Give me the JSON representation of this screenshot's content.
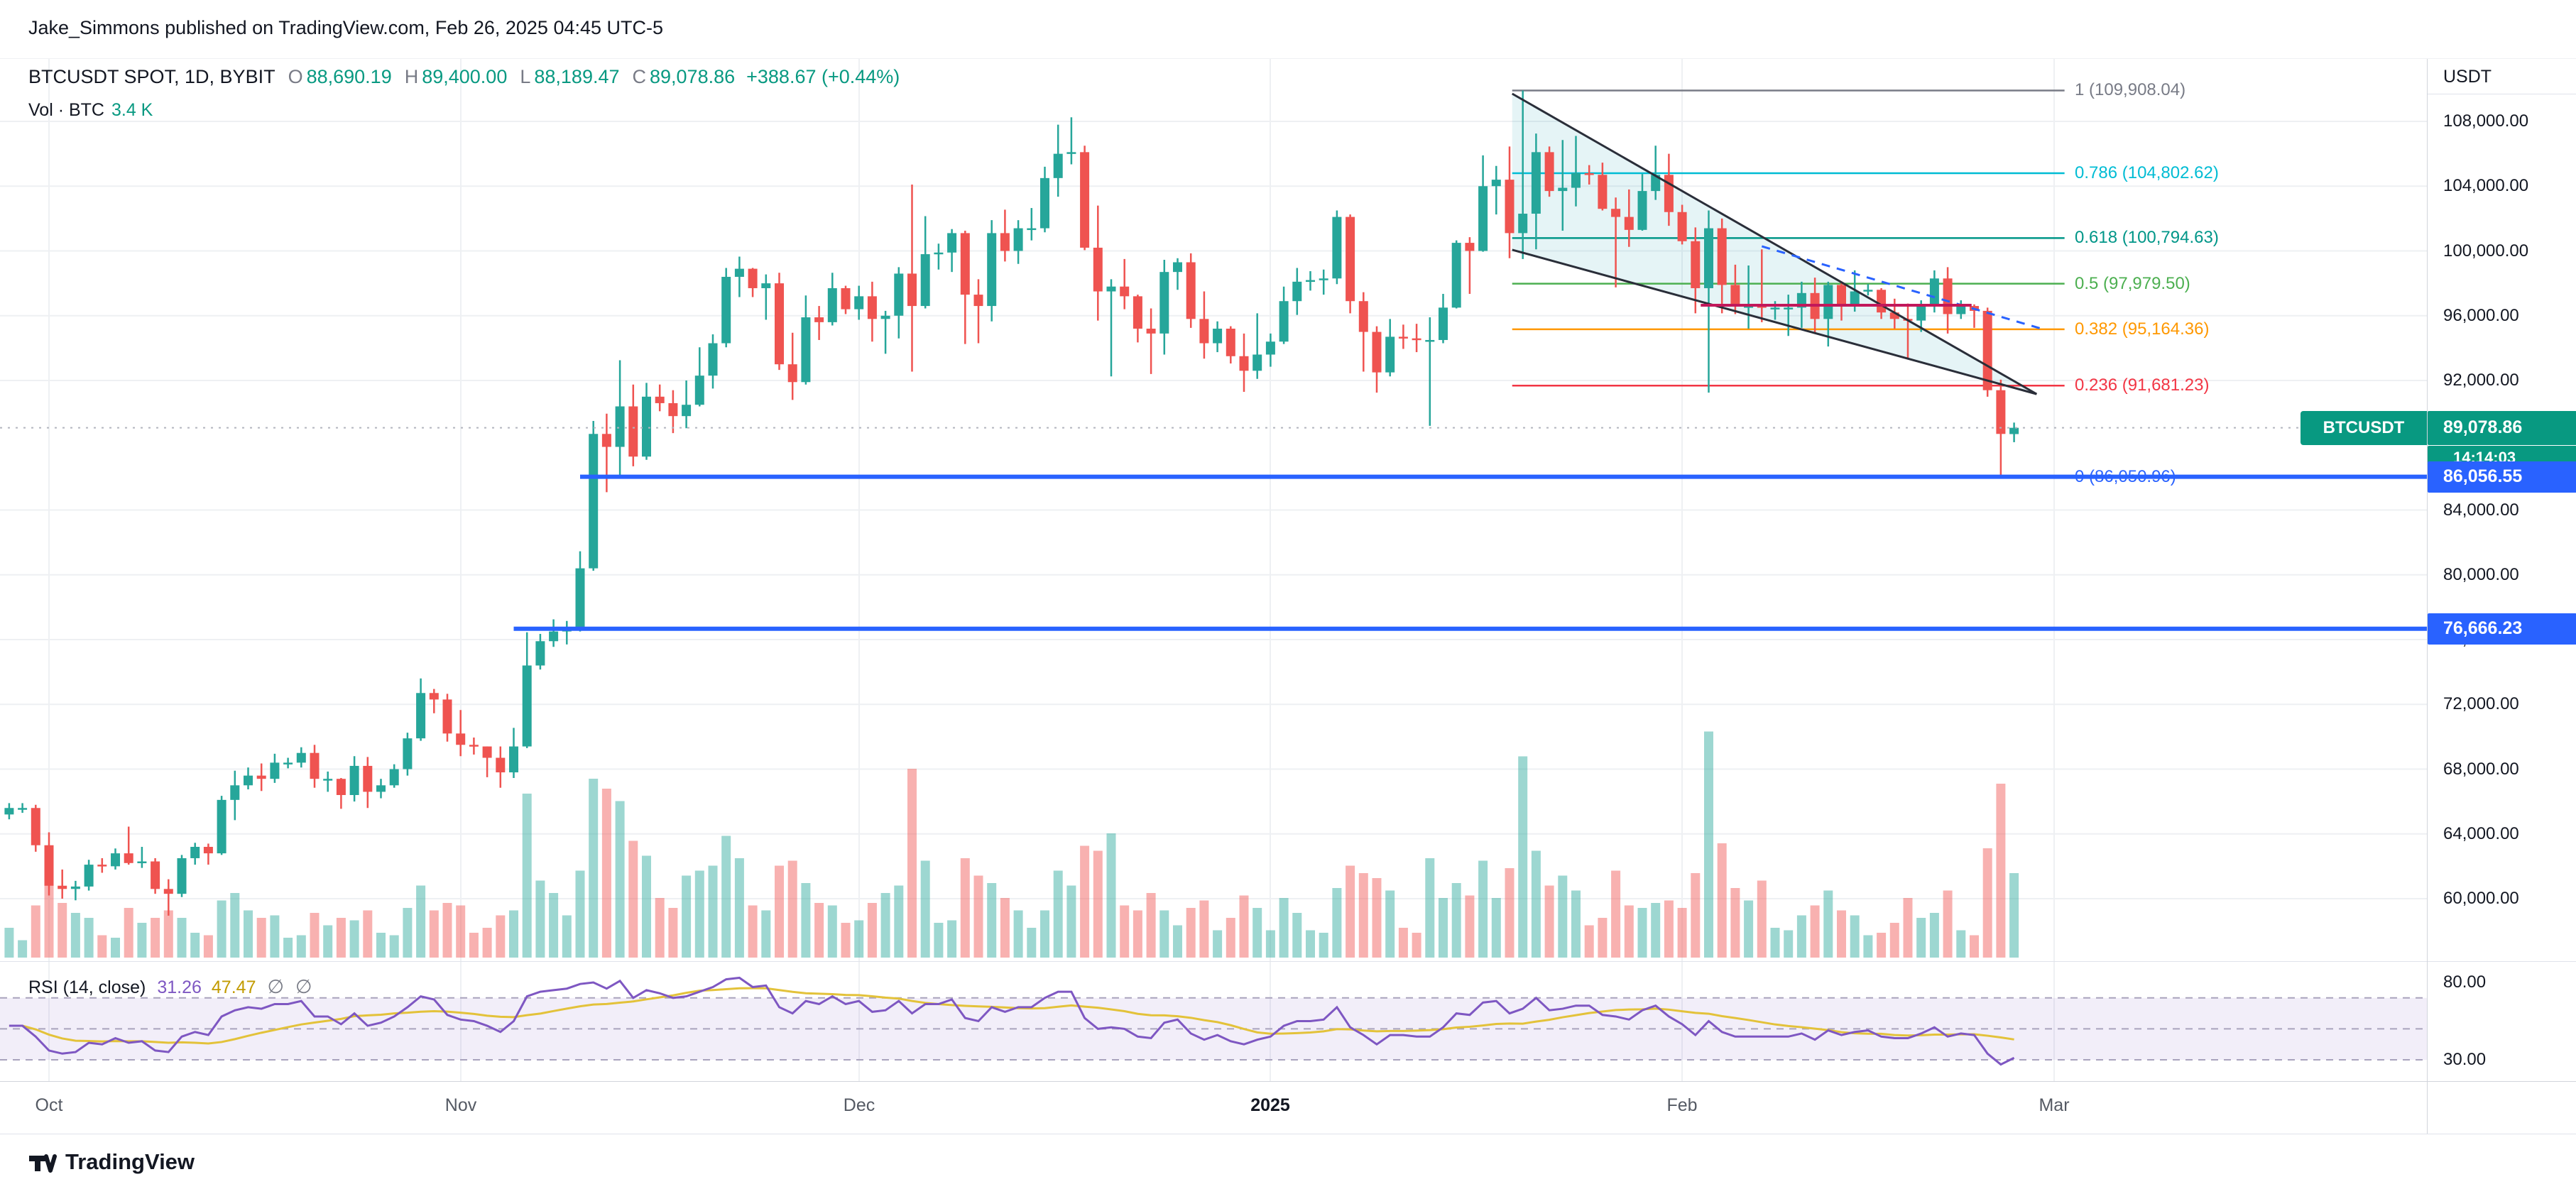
{
  "attribution": {
    "text": "Jake_Simmons published on TradingView.com, Feb 26, 2025 04:45 UTC-5"
  },
  "symbol_header": {
    "title": "BTCUSDT SPOT, 1D, BYBIT",
    "o_label": "O",
    "o": "88,690.19",
    "h_label": "H",
    "h": "89,400.00",
    "l_label": "L",
    "l": "88,189.47",
    "c_label": "C",
    "c": "89,078.86",
    "change": "+388.67 (+0.44%)",
    "volume_label": "Vol · BTC",
    "volume_value": "3.4 K"
  },
  "rsi_header": {
    "title": "RSI (14, close)",
    "value": "31.26",
    "ma_value": "47.47",
    "empty1": "∅",
    "empty2": "∅"
  },
  "price_axis": {
    "currency": "USDT",
    "ticks": [
      {
        "label": "108,000.00",
        "price": 108000
      },
      {
        "label": "104,000.00",
        "price": 104000
      },
      {
        "label": "100,000.00",
        "price": 100000
      },
      {
        "label": "96,000.00",
        "price": 96000
      },
      {
        "label": "92,000.00",
        "price": 92000
      },
      {
        "label": "84,000.00",
        "price": 84000
      },
      {
        "label": "80,000.00",
        "price": 80000
      },
      {
        "label": "76,000.00",
        "price": 76000
      },
      {
        "label": "72,000.00",
        "price": 72000
      },
      {
        "label": "68,000.00",
        "price": 68000
      },
      {
        "label": "64,000.00",
        "price": 64000
      },
      {
        "label": "60,000.00",
        "price": 60000
      }
    ],
    "rsi_ticks": [
      {
        "label": "80.00",
        "value": 80
      },
      {
        "label": "30.00",
        "value": 30
      }
    ]
  },
  "badges": {
    "current": {
      "symbol": "BTCUSDT",
      "price": "89,078.86",
      "countdown": "14:14:03",
      "color": "#089981",
      "value": 89078.86
    },
    "level1": {
      "label": "86,056.55",
      "value": 86056.55,
      "color": "#2962ff"
    },
    "level2": {
      "label": "76,666.23",
      "value": 76666.23,
      "color": "#2962ff"
    }
  },
  "time_axis": {
    "labels": [
      {
        "text": "Oct",
        "x": 69
      },
      {
        "text": "Nov",
        "x": 649
      },
      {
        "text": "Dec",
        "x": 1210
      },
      {
        "text": "2025",
        "x": 1789,
        "major": true
      },
      {
        "text": "Feb",
        "x": 2369
      },
      {
        "text": "Mar",
        "x": 2893
      }
    ]
  },
  "footer": {
    "brand": "TradingView"
  },
  "colors": {
    "up": "#26a69a",
    "down": "#ef5350",
    "vol_up": "rgba(38,166,154,0.45)",
    "vol_down": "rgba(239,83,80,0.45)",
    "rsi": "#7e57c2",
    "rsi_ma": "#e3c23a",
    "rsi_band_fill": "rgba(126,87,194,0.10)",
    "ray": "#2962ff",
    "grid": "#eef0f3",
    "channel": "#2a2e39",
    "channel_fill": "rgba(0,150,170,0.10)",
    "pink": "#c2185b",
    "price_dotted": "#b2b5be"
  },
  "chart_data": {
    "type": "candlestick",
    "interval": "1D",
    "ylim": [
      57500,
      111500
    ],
    "candles": [
      [
        65200,
        65900,
        64900,
        65600,
        1.2
      ],
      [
        65600,
        65900,
        65300,
        65600,
        0.7
      ],
      [
        65600,
        65800,
        62900,
        63300,
        2.1
      ],
      [
        63300,
        64100,
        60200,
        60800,
        3.2
      ],
      [
        60800,
        61800,
        60000,
        60600,
        2.2
      ],
      [
        60600,
        61100,
        59900,
        60750,
        1.8
      ],
      [
        60750,
        62400,
        60500,
        62100,
        1.6
      ],
      [
        62100,
        62500,
        61600,
        62000,
        0.9
      ],
      [
        62000,
        63100,
        61800,
        62800,
        0.8
      ],
      [
        62800,
        64450,
        62100,
        62200,
        2.0
      ],
      [
        62200,
        63200,
        61900,
        62300,
        1.4
      ],
      [
        62300,
        62500,
        60300,
        60600,
        1.6
      ],
      [
        60600,
        61200,
        58950,
        60300,
        1.9
      ],
      [
        60300,
        62700,
        60100,
        62500,
        1.6
      ],
      [
        62500,
        63450,
        62100,
        63200,
        1.0
      ],
      [
        63200,
        63400,
        62100,
        62800,
        0.9
      ],
      [
        62800,
        66350,
        62700,
        66100,
        2.3
      ],
      [
        66100,
        67900,
        64850,
        67000,
        2.6
      ],
      [
        67000,
        68100,
        66750,
        67600,
        1.9
      ],
      [
        67600,
        68350,
        66650,
        67400,
        1.6
      ],
      [
        67400,
        68950,
        67150,
        68400,
        1.7
      ],
      [
        68400,
        68700,
        68050,
        68400,
        0.8
      ],
      [
        68400,
        69350,
        68100,
        69000,
        0.9
      ],
      [
        69000,
        69500,
        66850,
        67400,
        1.8
      ],
      [
        67400,
        67850,
        66600,
        67400,
        1.3
      ],
      [
        67400,
        67450,
        65550,
        66400,
        1.6
      ],
      [
        66400,
        68800,
        66000,
        68200,
        1.5
      ],
      [
        68200,
        68750,
        65600,
        66600,
        1.9
      ],
      [
        66600,
        67400,
        66200,
        67000,
        1.0
      ],
      [
        67000,
        68300,
        66850,
        68000,
        0.9
      ],
      [
        68000,
        70250,
        67600,
        69900,
        2.0
      ],
      [
        69900,
        73600,
        69750,
        72700,
        2.9
      ],
      [
        72700,
        72950,
        71450,
        72300,
        1.9
      ],
      [
        72300,
        72650,
        69700,
        70200,
        2.2
      ],
      [
        70200,
        71650,
        68800,
        69500,
        2.1
      ],
      [
        69500,
        69950,
        68900,
        69400,
        1.0
      ],
      [
        69400,
        69400,
        67500,
        68700,
        1.2
      ],
      [
        68700,
        69400,
        66850,
        67800,
        1.7
      ],
      [
        67800,
        70550,
        67450,
        69400,
        1.9
      ],
      [
        69400,
        76450,
        69300,
        74400,
        6.6
      ],
      [
        74400,
        76350,
        74150,
        75900,
        3.1
      ],
      [
        75900,
        77250,
        75550,
        76500,
        2.6
      ],
      [
        76500,
        77150,
        75700,
        76700,
        1.7
      ],
      [
        76700,
        81450,
        76500,
        80400,
        3.5
      ],
      [
        80400,
        89500,
        80250,
        88700,
        7.2
      ],
      [
        88700,
        89950,
        85100,
        87900,
        6.8
      ],
      [
        87900,
        93250,
        86150,
        90400,
        6.3
      ],
      [
        90400,
        91750,
        86700,
        87300,
        4.7
      ],
      [
        87300,
        91850,
        87100,
        91000,
        4.1
      ],
      [
        91000,
        91750,
        90100,
        90600,
        2.4
      ],
      [
        90600,
        91400,
        88750,
        89800,
        2.0
      ],
      [
        89800,
        92000,
        89050,
        90500,
        3.3
      ],
      [
        90500,
        94050,
        90400,
        92300,
        3.5
      ],
      [
        92300,
        94850,
        91500,
        94300,
        3.7
      ],
      [
        94300,
        98950,
        94050,
        98400,
        4.9
      ],
      [
        98400,
        99650,
        97150,
        98900,
        4.0
      ],
      [
        98900,
        98950,
        97150,
        97700,
        2.1
      ],
      [
        97700,
        98550,
        95750,
        98000,
        1.9
      ],
      [
        98000,
        98650,
        92650,
        93000,
        3.7
      ],
      [
        93000,
        94950,
        90800,
        91900,
        3.9
      ],
      [
        91900,
        97250,
        91750,
        95900,
        3.0
      ],
      [
        95900,
        96600,
        94500,
        95600,
        2.2
      ],
      [
        95600,
        98650,
        95400,
        97700,
        2.1
      ],
      [
        97700,
        97850,
        96100,
        96400,
        1.4
      ],
      [
        96400,
        97850,
        95750,
        97200,
        1.5
      ],
      [
        97200,
        98100,
        94400,
        95800,
        2.2
      ],
      [
        95800,
        96300,
        93650,
        96000,
        2.6
      ],
      [
        96000,
        99000,
        94600,
        98600,
        2.9
      ],
      [
        98600,
        104100,
        92550,
        96600,
        7.6
      ],
      [
        96600,
        102150,
        96450,
        99800,
        3.9
      ],
      [
        99800,
        100450,
        98850,
        99900,
        1.4
      ],
      [
        99900,
        101350,
        98700,
        101100,
        1.5
      ],
      [
        101100,
        101250,
        94250,
        97300,
        4.0
      ],
      [
        97300,
        98250,
        94300,
        96600,
        3.3
      ],
      [
        96600,
        101900,
        95650,
        101100,
        3.0
      ],
      [
        101100,
        102550,
        99350,
        100000,
        2.4
      ],
      [
        100000,
        101900,
        99200,
        101400,
        1.9
      ],
      [
        101400,
        102650,
        100650,
        101400,
        1.2
      ],
      [
        101400,
        105200,
        101150,
        104500,
        1.9
      ],
      [
        104500,
        107800,
        103350,
        106000,
        3.5
      ],
      [
        106000,
        108250,
        105350,
        106100,
        2.9
      ],
      [
        106100,
        106500,
        100050,
        100200,
        4.5
      ],
      [
        100200,
        102800,
        95700,
        97500,
        4.3
      ],
      [
        97500,
        98250,
        92250,
        97800,
        5.0
      ],
      [
        97800,
        99500,
        96400,
        97200,
        2.1
      ],
      [
        97200,
        97300,
        94350,
        95200,
        1.9
      ],
      [
        95200,
        96450,
        92400,
        94900,
        2.6
      ],
      [
        94900,
        99450,
        93600,
        98700,
        1.9
      ],
      [
        98700,
        99550,
        97600,
        99300,
        1.3
      ],
      [
        99300,
        99850,
        95250,
        95800,
        2.0
      ],
      [
        95800,
        97500,
        93350,
        94300,
        2.3
      ],
      [
        94300,
        95650,
        93750,
        95200,
        1.1
      ],
      [
        95200,
        95350,
        93050,
        93500,
        1.6
      ],
      [
        93500,
        94900,
        91300,
        92600,
        2.5
      ],
      [
        92600,
        96150,
        92100,
        93600,
        2.0
      ],
      [
        93600,
        94900,
        92850,
        94400,
        1.1
      ],
      [
        94400,
        97800,
        94250,
        96900,
        2.4
      ],
      [
        96900,
        98950,
        96050,
        98100,
        1.8
      ],
      [
        98100,
        98750,
        97550,
        98200,
        1.1
      ],
      [
        98200,
        98850,
        97300,
        98300,
        1.0
      ],
      [
        98300,
        102500,
        97950,
        102100,
        2.8
      ],
      [
        102100,
        102250,
        96150,
        96900,
        3.7
      ],
      [
        96900,
        97450,
        92550,
        95000,
        3.4
      ],
      [
        95000,
        95350,
        91250,
        92500,
        3.2
      ],
      [
        92500,
        95800,
        92250,
        94700,
        2.7
      ],
      [
        94700,
        95450,
        93950,
        94600,
        1.2
      ],
      [
        94600,
        95500,
        93750,
        94500,
        1.0
      ],
      [
        94500,
        95900,
        89200,
        94500,
        4.0
      ],
      [
        94500,
        97350,
        94300,
        96500,
        2.4
      ],
      [
        96500,
        100650,
        96450,
        100500,
        3.0
      ],
      [
        100500,
        100850,
        97350,
        100000,
        2.5
      ],
      [
        100000,
        105900,
        99950,
        104000,
        3.9
      ],
      [
        104000,
        105250,
        102250,
        104400,
        2.4
      ],
      [
        104400,
        106450,
        99550,
        101100,
        3.6
      ],
      [
        101100,
        109908,
        99500,
        102300,
        8.1
      ],
      [
        102300,
        107250,
        100100,
        106100,
        4.3
      ],
      [
        106100,
        106450,
        103350,
        103700,
        2.9
      ],
      [
        103700,
        106850,
        101250,
        103900,
        3.3
      ],
      [
        103900,
        107100,
        102750,
        104800,
        2.7
      ],
      [
        104800,
        105300,
        104100,
        104700,
        1.3
      ],
      [
        104700,
        105450,
        102500,
        102600,
        1.6
      ],
      [
        102600,
        103300,
        97750,
        102100,
        3.5
      ],
      [
        102100,
        103800,
        100250,
        101300,
        2.1
      ],
      [
        101300,
        104750,
        101250,
        103700,
        2.0
      ],
      [
        103700,
        106500,
        103150,
        104700,
        2.2
      ],
      [
        104700,
        106000,
        101550,
        102400,
        2.3
      ],
      [
        102400,
        102850,
        100400,
        100600,
        2.0
      ],
      [
        100600,
        101450,
        96150,
        97700,
        3.4
      ],
      [
        97700,
        102500,
        91250,
        101400,
        9.1
      ],
      [
        101400,
        102000,
        96150,
        97900,
        4.6
      ],
      [
        97900,
        99150,
        96100,
        96600,
        2.8
      ],
      [
        96600,
        99100,
        95200,
        96600,
        2.3
      ],
      [
        96600,
        100100,
        95600,
        96500,
        3.1
      ],
      [
        96500,
        96900,
        95750,
        96500,
        1.2
      ],
      [
        96500,
        97300,
        94750,
        96500,
        1.1
      ],
      [
        96500,
        98100,
        95250,
        97400,
        1.7
      ],
      [
        97400,
        98350,
        94900,
        95800,
        2.1
      ],
      [
        95800,
        98100,
        94100,
        97900,
        2.7
      ],
      [
        97900,
        98050,
        95700,
        96600,
        1.9
      ],
      [
        96600,
        98800,
        96250,
        97500,
        1.7
      ],
      [
        97500,
        97950,
        97250,
        97600,
        0.9
      ],
      [
        97600,
        97700,
        95800,
        96200,
        1.0
      ],
      [
        96200,
        97050,
        95200,
        95800,
        1.4
      ],
      [
        95800,
        96750,
        93400,
        95700,
        2.4
      ],
      [
        95700,
        96950,
        95000,
        96700,
        1.6
      ],
      [
        96700,
        98800,
        96200,
        98300,
        1.8
      ],
      [
        98300,
        99000,
        94900,
        96100,
        2.7
      ],
      [
        96100,
        96950,
        95800,
        96600,
        1.1
      ],
      [
        96600,
        96700,
        95250,
        96300,
        0.9
      ],
      [
        96300,
        96500,
        91000,
        91400,
        4.4
      ],
      [
        91400,
        92050,
        86051,
        88700,
        7.0
      ],
      [
        88690.19,
        89400,
        88189.47,
        89078.86,
        3.4
      ]
    ],
    "rsi": [
      52,
      52,
      45,
      36,
      34,
      35,
      41,
      40,
      44,
      41,
      42,
      36,
      35,
      45,
      48,
      46,
      58,
      62,
      64,
      63,
      66,
      66,
      68,
      58,
      58,
      53,
      60,
      52,
      54,
      58,
      64,
      71,
      69,
      59,
      56,
      55,
      52,
      48,
      55,
      71,
      74,
      75,
      76,
      79,
      80,
      76,
      81,
      70,
      75,
      73,
      70,
      71,
      74,
      77,
      82,
      83,
      77,
      78,
      64,
      60,
      68,
      66,
      71,
      66,
      68,
      61,
      62,
      68,
      60,
      66,
      66,
      69,
      57,
      55,
      64,
      61,
      64,
      64,
      70,
      74,
      74,
      57,
      50,
      51,
      50,
      45,
      44,
      54,
      56,
      47,
      43,
      46,
      42,
      40,
      43,
      45,
      52,
      55,
      55,
      56,
      64,
      51,
      46,
      40,
      46,
      46,
      45,
      45,
      51,
      60,
      59,
      67,
      68,
      60,
      63,
      70,
      62,
      63,
      65,
      65,
      59,
      58,
      56,
      62,
      65,
      58,
      53,
      46,
      55,
      48,
      45,
      45,
      45,
      45,
      45,
      47,
      43,
      49,
      46,
      48,
      49,
      45,
      44,
      44,
      47,
      51,
      45,
      47,
      46,
      34,
      27,
      31.26
    ],
    "rsi_bands": [
      70,
      50,
      30
    ],
    "fib_levels": [
      {
        "label": "1 (109,908.04)",
        "price": 109908.04,
        "color": "#787b86"
      },
      {
        "label": "0.786 (104,802.62)",
        "price": 104802.62,
        "color": "#00bcd4"
      },
      {
        "label": "0.618 (100,794.63)",
        "price": 100794.63,
        "color": "#009688"
      },
      {
        "label": "0.5 (97,979.50)",
        "price": 97979.5,
        "color": "#4caf50"
      },
      {
        "label": "0.382 (95,164.36)",
        "price": 95164.36,
        "color": "#ff9800"
      },
      {
        "label": "0.236 (91,681.23)",
        "price": 91681.23,
        "color": "#f23645"
      },
      {
        "label": "0 (86,050.96)",
        "price": 86050.96,
        "color": "#2962ff"
      }
    ],
    "fib_x_range": [
      113.2,
      154.8
    ],
    "rays": [
      {
        "price": 86056.55,
        "from_index": 43
      },
      {
        "price": 76666.23,
        "from_index": 38
      }
    ],
    "channel": {
      "upper": [
        [
          113.2,
          109710
        ],
        [
          152.7,
          91162
        ]
      ],
      "lower": [
        [
          113.2,
          100070
        ],
        [
          152.7,
          91162
        ]
      ]
    },
    "median_dashed": [
      [
        132,
        100285
      ],
      [
        153,
        95210
      ]
    ],
    "pink_segment": {
      "price": 96647,
      "from_index": 127.4,
      "to_index": 147.8
    },
    "current_price": 89078.86
  }
}
